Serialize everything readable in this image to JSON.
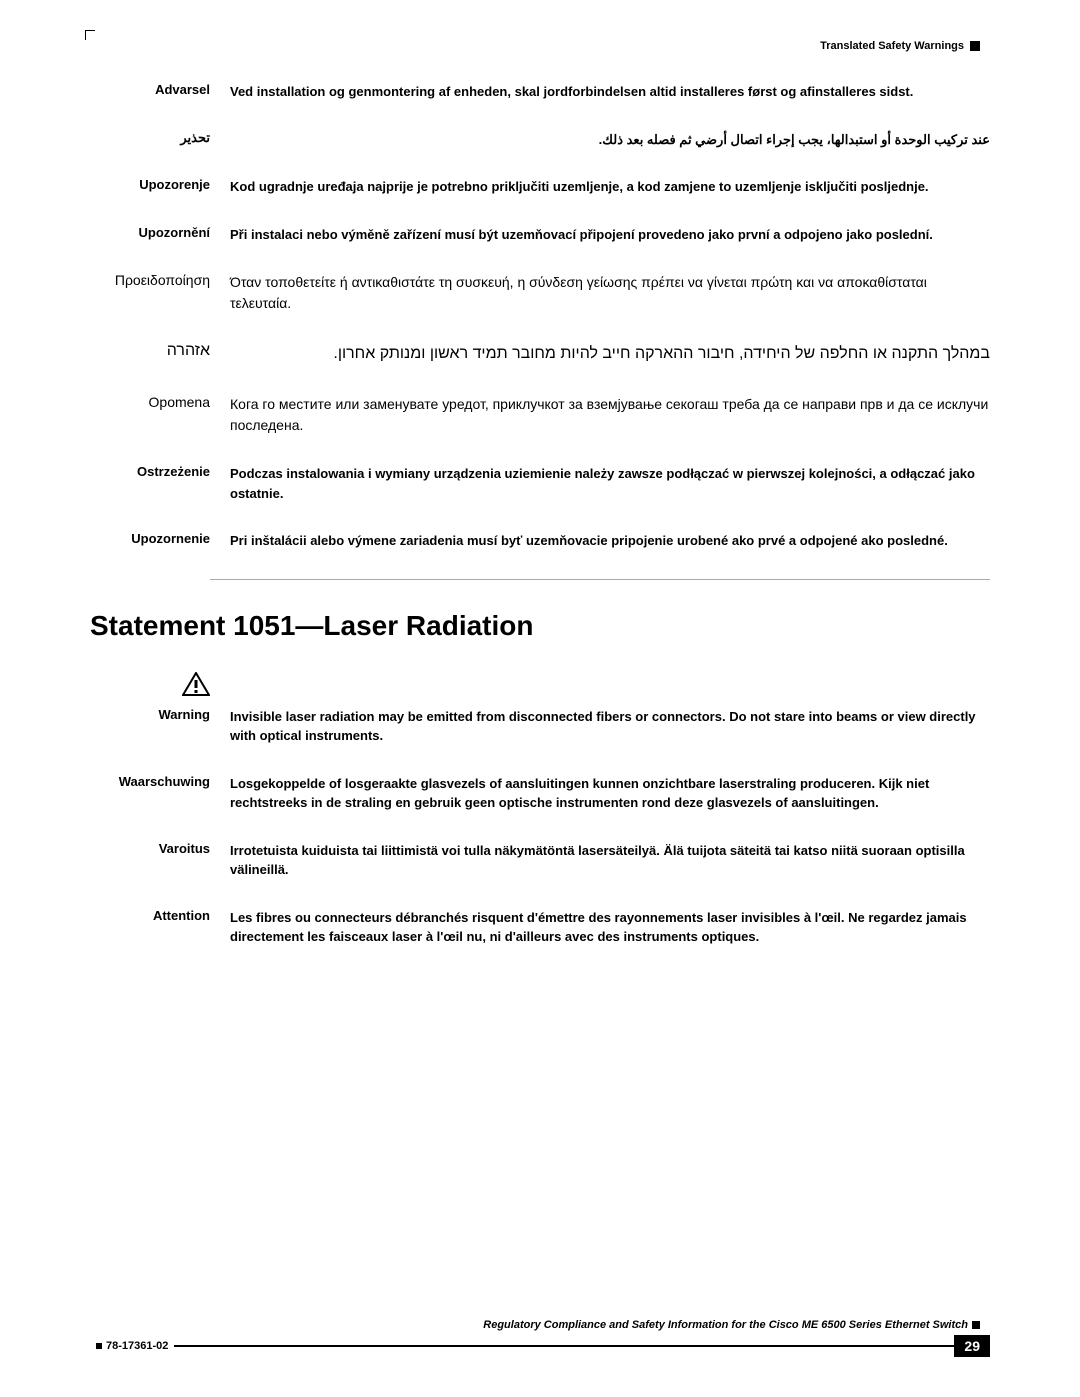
{
  "header": {
    "title": "Translated Safety Warnings"
  },
  "warnings_top": [
    {
      "label": "Advarsel",
      "text": "Ved installation og genmontering af enheden, skal jordforbindelsen altid installeres først og afinstalleres sidst.",
      "cls": ""
    },
    {
      "label": "تحذير",
      "text": "عند تركيب الوحدة أو استبدالها، يجب إجراء اتصال أرضي ثم فصله بعد ذلك.",
      "cls": "",
      "rtl_label": true,
      "rtl_text": true
    },
    {
      "label": "Upozorenje",
      "text": "Kod ugradnje uređaja najprije je potrebno priključiti uzemljenje, a kod zamjene to uzemljenje isključiti posljednje.",
      "cls": ""
    },
    {
      "label": "Upozornění",
      "text": "Při instalaci nebo výměně zařízení musí být uzemňovací připojení provedeno jako první a odpojeno jako poslední.",
      "cls": ""
    },
    {
      "label": "Προειδοποίηση",
      "text": "Όταν τοποθετείτε ή αντικαθιστάτε τη συσκευή, η σύνδεση γείωσης πρέπει να γίνεται πρώτη και να αποκαθίσταται τελευταία.",
      "cls": "greek"
    },
    {
      "label": "אזהרה",
      "text": "במהלך התקנה או החלפה של היחידה, חיבור ההארקה חייב להיות מחובר תמיד ראשון ומנותק אחרון.",
      "cls": "hebrew"
    },
    {
      "label": "Opomena",
      "text": "Кога го местите или заменувате уредот, приклучкот за вземјување секогаш треба да се направи прв и да се исклучи последена.",
      "cls": "macedonian"
    },
    {
      "label": "Ostrzeżenie",
      "text": "Podczas instalowania i wymiany urządzenia uziemienie należy zawsze podłączać w pierwszej kolejności, a odłączać jako ostatnie.",
      "cls": ""
    },
    {
      "label": "Upozornenie",
      "text": "Pri inštalácii alebo výmene zariadenia musí byť uzemňovacie pripojenie urobené ako prvé a odpojené ako posledné.",
      "cls": ""
    }
  ],
  "statement": {
    "heading": "Statement 1051—Laser Radiation"
  },
  "warnings_bottom": [
    {
      "label": "Warning",
      "text": "Invisible laser radiation may be emitted from disconnected fibers or connectors. Do not stare into beams or view directly with optical instruments.",
      "icon": true
    },
    {
      "label": "Waarschuwing",
      "text": "Losgekoppelde of losgeraakte glasvezels of aansluitingen kunnen onzichtbare laserstraling produceren. Kijk niet rechtstreeks in de straling en gebruik geen optische instrumenten rond deze glasvezels of aansluitingen."
    },
    {
      "label": "Varoitus",
      "text": "Irrotetuista kuiduista tai liittimistä voi tulla näkymätöntä lasersäteilyä. Älä tuijota säteitä tai katso niitä suoraan optisilla välineillä."
    },
    {
      "label": "Attention",
      "text": "Les fibres ou connecteurs débranchés risquent d'émettre des rayonnements laser invisibles à l'œil. Ne regardez jamais directement les faisceaux laser à l'œil nu, ni d'ailleurs avec des instruments optiques."
    }
  ],
  "footer": {
    "title": "Regulatory Compliance and Safety Information for the Cisco ME 6500 Series Ethernet Switch",
    "doc": "78-17361-02",
    "page": "29"
  },
  "colors": {
    "text": "#000000",
    "bg": "#ffffff"
  }
}
